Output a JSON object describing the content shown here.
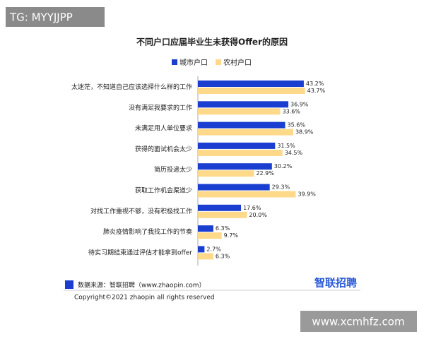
{
  "watermarks": [
    "TG: MYYJJPP",
    "www.xcmhfz.com"
  ],
  "chart_data": {
    "type": "bar",
    "title": "不同户口应届毕业生未获得Offer的原因",
    "categories": [
      "太迷茫，不知道自己应该选择什么样的工作",
      "没有满足我要求的工作",
      "未满足用人单位要求",
      "获得的面试机会太少",
      "简历投递太少",
      "获取工作机会渠道少",
      "对找工作重视不够，没有积极找工作",
      "肺炎疫情影响了我找工作的节奏",
      "待实习期结束通过评估才能拿到offer"
    ],
    "series": [
      {
        "name": "城市户口",
        "color": "#1a3fd0",
        "values": [
          43.2,
          36.9,
          35.6,
          31.5,
          30.2,
          29.3,
          17.6,
          6.3,
          2.7
        ],
        "value_labels": [
          "43.2%",
          "36.9%",
          "35.6%",
          "31.5%",
          "30.2%",
          "29.3%",
          "17.6%",
          "6.3%",
          "2.7%"
        ]
      },
      {
        "name": "农村户口",
        "color": "#ffd98a",
        "values": [
          43.7,
          33.6,
          38.9,
          34.5,
          22.9,
          39.9,
          20.0,
          9.7,
          6.3
        ],
        "value_labels": [
          "43.7%",
          "33.6%",
          "38.9%",
          "34.5%",
          "22.9%",
          "39.9%",
          "20.0%",
          "9.7%",
          "6.3%"
        ]
      }
    ]
  },
  "footer": {
    "source": "数据来源：智联招聘（www.zhaopin.com）",
    "logo": "智联招聘",
    "copyright": "Copyright©2021 zhaopin all rights reserved"
  }
}
